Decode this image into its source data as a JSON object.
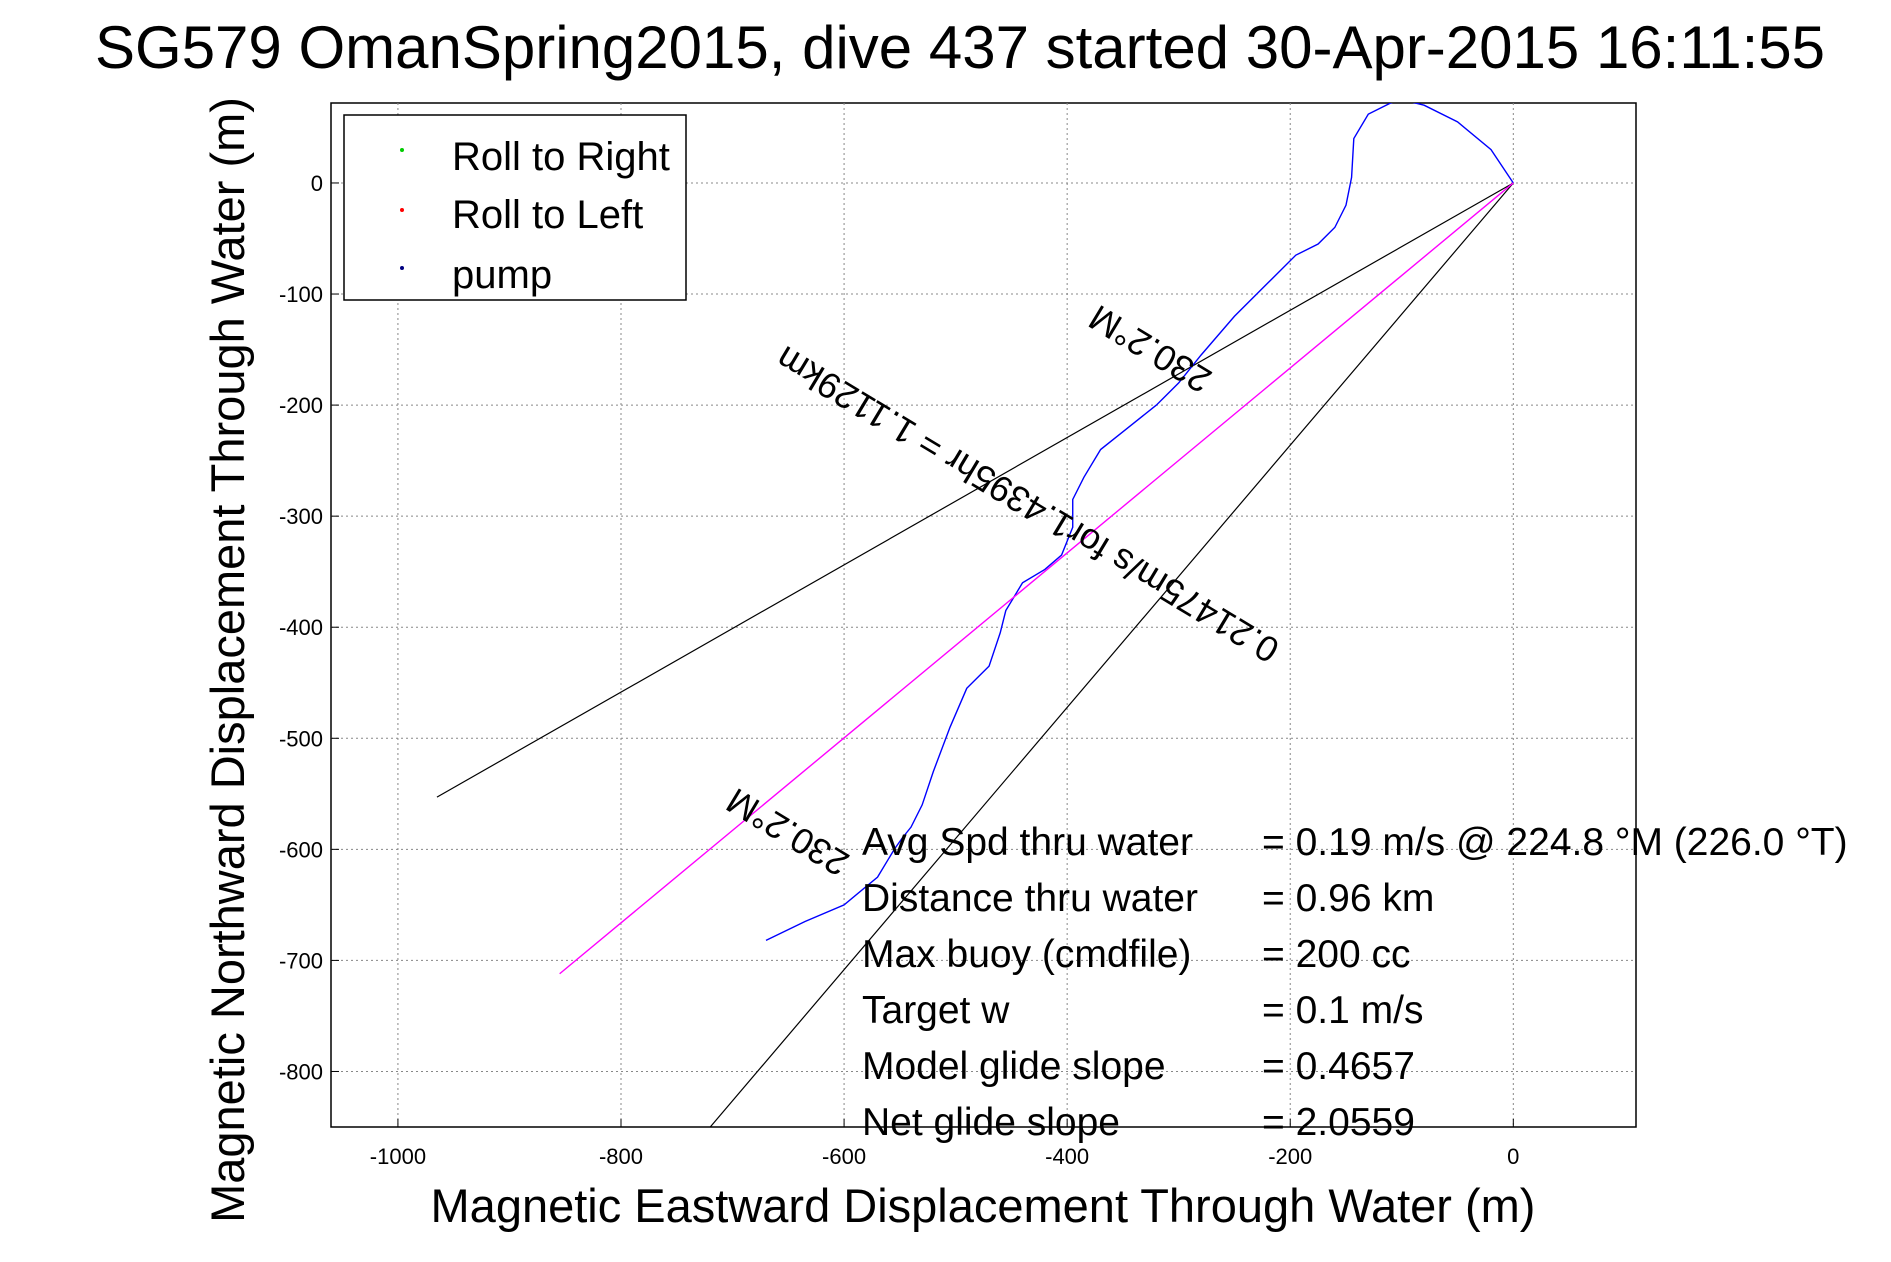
{
  "chart_data": {
    "type": "line",
    "title": "SG579 OmanSpring2015, dive 437 started 30-Apr-2015 16:11:55",
    "xlabel": "Magnetic Eastward Displacement Through Water (m)",
    "ylabel": "Magnetic Northward Displacement Through Water (m)",
    "xlim": [
      -1060,
      110
    ],
    "ylim": [
      -850,
      72
    ],
    "xticks": [
      -1000,
      -800,
      -600,
      -400,
      -200,
      0
    ],
    "yticks": [
      0,
      -100,
      -200,
      -300,
      -400,
      -500,
      -600,
      -700,
      -800
    ],
    "grid": true,
    "legend_position": "top-left",
    "legend": [
      {
        "label": "Roll to Right",
        "color": "#00cc00"
      },
      {
        "label": "Roll to Left",
        "color": "#ff0000"
      },
      {
        "label": "pump",
        "color": "#000080"
      }
    ],
    "series": [
      {
        "color": "#0000ff",
        "x": [
          0,
          -20,
          -50,
          -80,
          -100,
          -110,
          -130,
          -143,
          -145,
          -150,
          -160,
          -175,
          -195,
          -220,
          -250,
          -280,
          -300,
          -320,
          -345,
          -370,
          -385,
          -395,
          -395,
          -405,
          -420,
          -440,
          -455,
          -460,
          -470,
          -490,
          -505,
          -520,
          -530,
          -540,
          -548,
          -555,
          -570,
          -600,
          -635,
          -670
        ],
        "y": [
          0,
          30,
          55,
          70,
          75,
          72,
          62,
          40,
          5,
          -20,
          -40,
          -55,
          -65,
          -90,
          -120,
          -155,
          -180,
          -200,
          -220,
          -240,
          -265,
          -285,
          -310,
          -335,
          -348,
          -360,
          -385,
          -405,
          -435,
          -455,
          -490,
          -530,
          -560,
          -580,
          -590,
          -600,
          -625,
          -650,
          -665,
          -682
        ]
      },
      {
        "color": "#ff00ff",
        "x": [
          0,
          -855
        ],
        "y": [
          0,
          -712
        ]
      }
    ],
    "segments": [
      {
        "color": "#000000",
        "x": [
          0,
          -965
        ],
        "y": [
          0,
          -553
        ]
      },
      {
        "color": "#000000",
        "x": [
          0,
          -720
        ],
        "y": [
          0,
          -850
        ]
      }
    ],
    "annotations": [
      {
        "text": "230.2°M",
        "x": -320,
        "y": -140,
        "rotation": 211
      },
      {
        "text": "0.21475m/s for1.4395hr = 1.1129km",
        "x": -430,
        "y": -280,
        "rotation": 211
      },
      {
        "text": "230.2°M",
        "x": -645,
        "y": -575,
        "rotation": 211
      }
    ],
    "stats": [
      {
        "label": "Avg Spd thru water",
        "value": "=  0.19 m/s @ 224.8 °M (226.0 °T)"
      },
      {
        "label": "Distance thru water",
        "value": "=  0.96 km"
      },
      {
        "label": "Max buoy (cmdfile)",
        "value": "= 200 cc"
      },
      {
        "label": "Target w",
        "value": "= 0.1 m/s"
      },
      {
        "label": "Model glide slope",
        "value": "= 0.4657"
      },
      {
        "label": "Net glide slope",
        "value": "= 2.0559"
      }
    ]
  }
}
